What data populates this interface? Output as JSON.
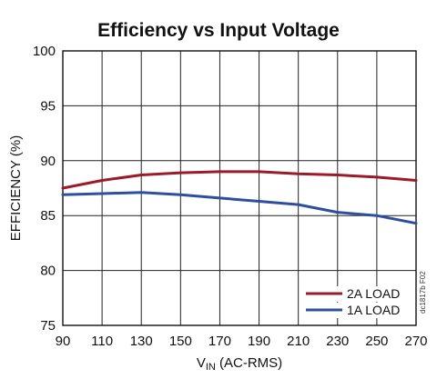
{
  "chart_data": {
    "type": "line",
    "title": "Efficiency vs Input Voltage",
    "xlabel_main": "V",
    "xlabel_sub": "IN",
    "xlabel_rest": " (AC-RMS)",
    "ylabel": "EFFICIENCY (%)",
    "x": [
      90,
      110,
      130,
      150,
      170,
      190,
      210,
      230,
      250,
      270
    ],
    "xlim": [
      90,
      270
    ],
    "ylim": [
      75,
      100
    ],
    "xticks": [
      "90",
      "110",
      "130",
      "150",
      "170",
      "190",
      "210",
      "230",
      "250",
      "270"
    ],
    "yticks": [
      "75",
      "80",
      "85",
      "90",
      "95",
      "100"
    ],
    "grid": true,
    "legend_position": "bottom-right",
    "series": [
      {
        "name": "2A LOAD",
        "color": "#9b1b2a",
        "x": [
          90,
          110,
          130,
          150,
          170,
          190,
          210,
          230,
          250,
          270
        ],
        "values": [
          87.5,
          88.2,
          88.7,
          88.9,
          89.0,
          89.0,
          88.8,
          88.7,
          88.5,
          88.2
        ]
      },
      {
        "name": "1A LOAD",
        "color": "#2e4fa0",
        "x": [
          90,
          110,
          130,
          150,
          170,
          190,
          210,
          230,
          250,
          270
        ],
        "values": [
          86.9,
          87.0,
          87.1,
          86.9,
          86.6,
          86.3,
          86.0,
          85.3,
          85.0,
          84.3
        ]
      }
    ],
    "figure_code": "dc1817b F02"
  }
}
